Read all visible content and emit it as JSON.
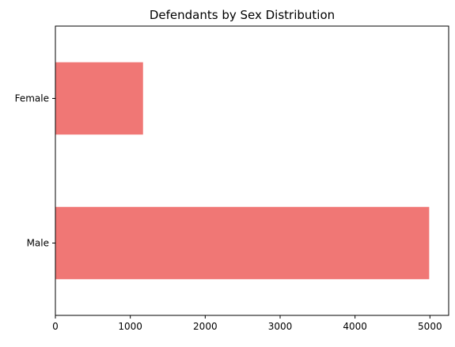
{
  "chart_data": {
    "type": "bar",
    "orientation": "horizontal",
    "title": "Defendants by Sex Distribution",
    "xlabel": "",
    "ylabel": "",
    "categories": [
      "Male",
      "Female"
    ],
    "values": [
      4990,
      1170
    ],
    "xlim": [
      0,
      5250
    ],
    "xticks": [
      0,
      1000,
      2000,
      3000,
      4000,
      5000
    ],
    "grid": false,
    "legend": "none",
    "bar_color": "#f07775"
  }
}
